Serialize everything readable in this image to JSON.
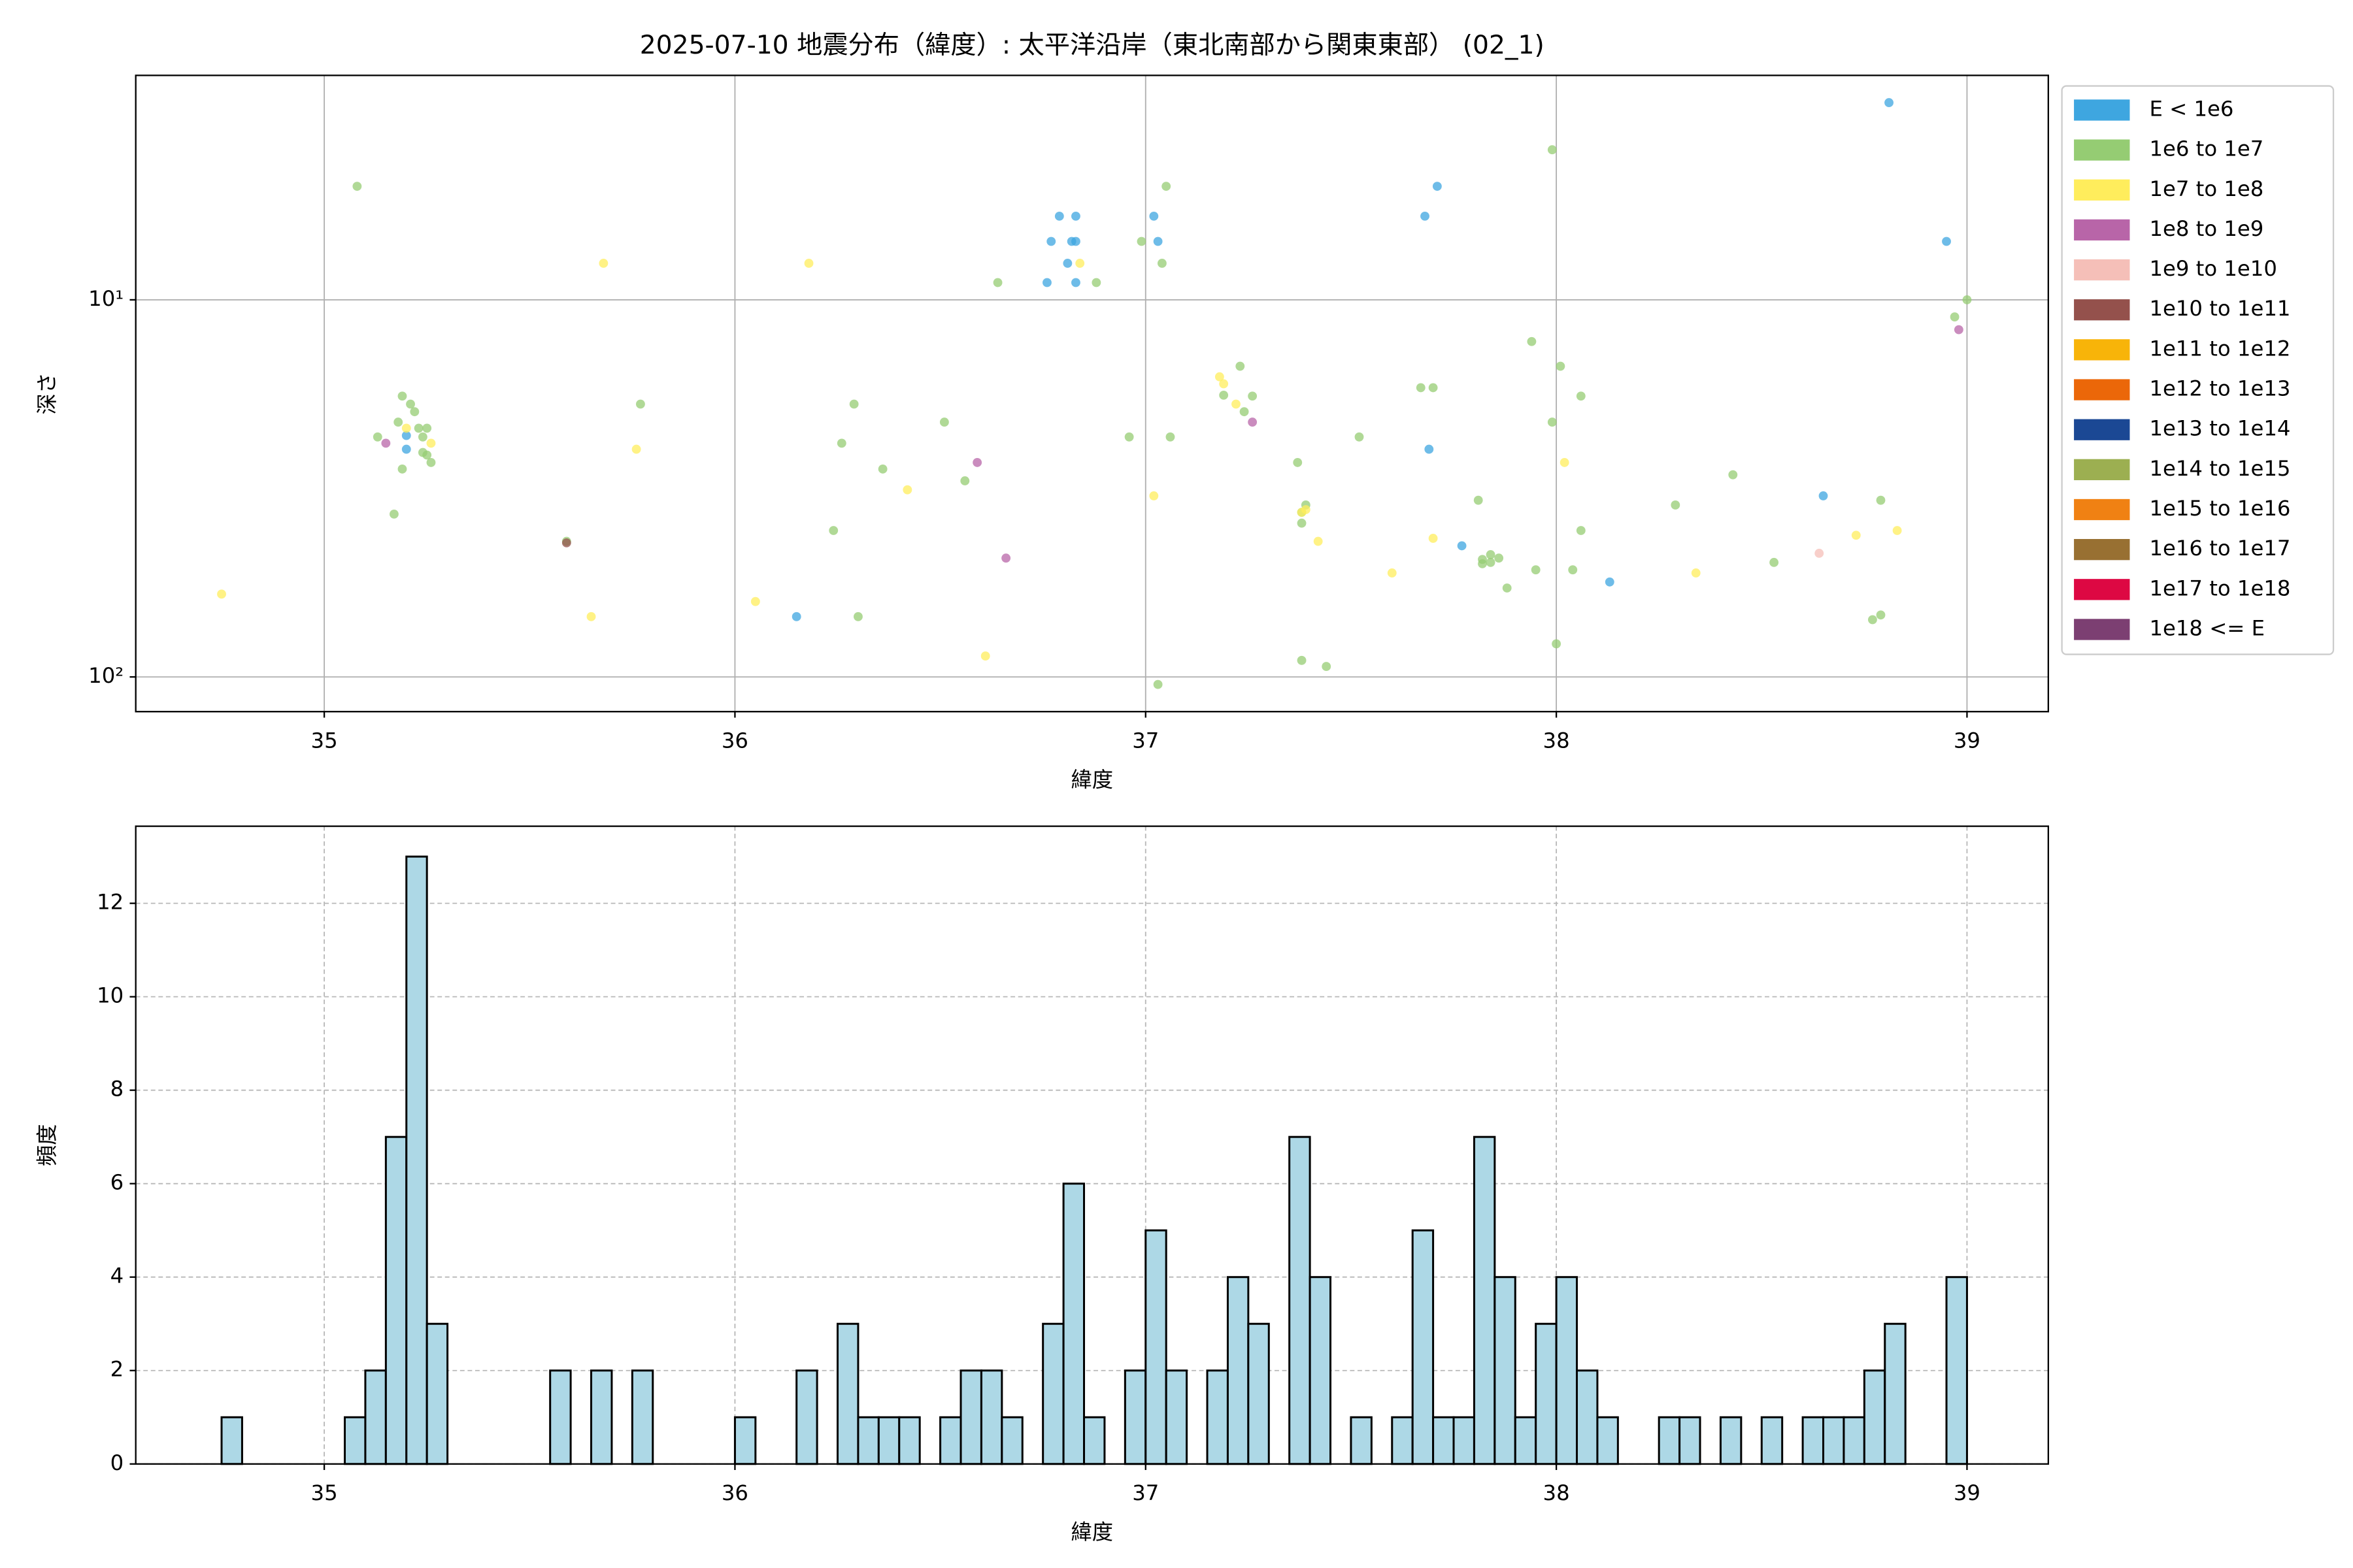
{
  "chart_data": [
    {
      "type": "scatter",
      "title": "2025-07-10 地震分布（緯度）: 太平洋沿岸（東北南部から関東東部） (02_1)",
      "xlabel": "緯度",
      "ylabel": "深さ",
      "xlim": [
        34.541,
        39.198
      ],
      "xticks": [
        35,
        36,
        37,
        38,
        39
      ],
      "ylim": [
        2.54,
        123.6
      ],
      "yscale": "log",
      "invert_y": true,
      "yticks": [
        {
          "value": 10,
          "label": "10¹"
        },
        {
          "value": 100,
          "label": "10²"
        }
      ],
      "grid": true,
      "grid_linestyle": "solid",
      "legend": "outside right",
      "series": [
        {
          "name": "E < 1e6",
          "color": "#3ea6e0",
          "x": [
            38.81,
            38.95,
            36.79,
            36.83,
            36.77,
            36.82,
            36.83,
            36.81,
            36.76,
            36.83,
            37.02,
            37.03,
            37.68,
            37.71,
            35.2,
            35.2,
            37.69,
            37.77,
            36.15,
            38.13,
            38.65
          ],
          "values": [
            3.0,
            7.0,
            6.0,
            6.0,
            7.0,
            7.0,
            7.0,
            8.0,
            9.0,
            9.0,
            6.0,
            7.0,
            6.0,
            5.0,
            22.9,
            24.9,
            24.9,
            44.9,
            69.2,
            56.0,
            33.1
          ]
        },
        {
          "name": "1e6 to 1e7",
          "color": "#95cc73",
          "x": [
            35.08,
            37.99,
            37.05,
            36.99,
            37.04,
            36.64,
            36.88,
            39.0,
            38.97,
            37.94,
            37.23,
            38.01,
            38.06,
            37.19,
            37.26,
            37.24,
            35.19,
            35.21,
            35.22,
            36.29,
            35.77,
            36.51,
            37.99,
            35.18,
            35.23,
            35.25,
            35.13,
            35.24,
            37.67,
            37.7,
            36.96,
            37.06,
            37.52,
            36.26,
            35.24,
            35.25,
            35.26,
            35.19,
            36.36,
            37.37,
            36.56,
            38.43,
            37.81,
            38.79,
            38.29,
            37.39,
            37.38,
            37.38,
            35.17,
            36.24,
            38.06,
            37.84,
            37.82,
            37.86,
            37.84,
            37.82,
            38.53,
            37.95,
            38.04,
            37.88,
            36.3,
            38.79,
            38.77,
            38.0,
            37.38,
            37.44,
            37.03,
            35.59
          ],
          "values": [
            5.0,
            4.0,
            5.0,
            7.0,
            8.0,
            9.0,
            9.0,
            10.0,
            11.1,
            12.9,
            15.0,
            15.0,
            18.0,
            17.9,
            18.0,
            19.8,
            18.0,
            18.9,
            19.8,
            18.9,
            18.9,
            21.1,
            21.1,
            21.1,
            21.9,
            21.9,
            23.1,
            23.1,
            17.1,
            17.1,
            23.1,
            23.1,
            23.1,
            24.0,
            25.4,
            25.8,
            27.0,
            28.1,
            28.1,
            27.0,
            30.2,
            29.1,
            34.0,
            34.0,
            35.0,
            35.0,
            36.6,
            39.1,
            37.0,
            40.9,
            40.9,
            47.4,
            48.8,
            48.4,
            49.7,
            50.1,
            49.7,
            52.0,
            52.0,
            58.1,
            69.2,
            68.5,
            70.5,
            81.7,
            90.4,
            93.8,
            104.7,
            43.7
          ]
        },
        {
          "name": "1e7 to 1e8",
          "color": "#ffed5c",
          "x": [
            35.68,
            36.18,
            36.84,
            37.18,
            37.19,
            37.22,
            35.26,
            35.2,
            35.76,
            38.02,
            36.42,
            37.02,
            37.38,
            37.42,
            37.7,
            38.73,
            38.83,
            37.6,
            38.34,
            34.75,
            36.05,
            35.65,
            36.61,
            37.39
          ],
          "values": [
            8.0,
            8.0,
            8.0,
            16.0,
            16.7,
            18.9,
            24.0,
            21.9,
            24.9,
            27.0,
            31.9,
            33.1,
            36.6,
            43.7,
            42.9,
            42.1,
            40.9,
            53.0,
            53.0,
            60.3,
            63.1,
            69.2,
            88.0,
            36.0
          ]
        },
        {
          "name": "1e8 to 1e9",
          "color": "#b865a8",
          "x": [
            35.15,
            36.59,
            37.26,
            36.66,
            38.98
          ],
          "values": [
            24.0,
            27.0,
            21.1,
            48.4,
            12.0
          ]
        },
        {
          "name": "1e9 to 1e10",
          "color": "#f5bfb8",
          "x": [
            38.64
          ],
          "values": [
            47.0
          ]
        },
        {
          "name": "1e10 to 1e11",
          "color": "#94514c",
          "x": [
            35.59
          ],
          "values": [
            44.1
          ]
        },
        {
          "name": "1e11 to 1e12",
          "color": "#f8b409",
          "x": [],
          "values": []
        },
        {
          "name": "1e12 to 1e13",
          "color": "#eb6709",
          "x": [],
          "values": []
        },
        {
          "name": "1e13 to 1e14",
          "color": "#1b4894",
          "x": [],
          "values": []
        },
        {
          "name": "1e14 to 1e15",
          "color": "#9caf51",
          "x": [],
          "values": []
        },
        {
          "name": "1e15 to 1e16",
          "color": "#f08113",
          "x": [],
          "values": []
        },
        {
          "name": "1e16 to 1e17",
          "color": "#987032",
          "x": [],
          "values": []
        },
        {
          "name": "1e17 to 1e18",
          "color": "#dd0843",
          "x": [],
          "values": []
        },
        {
          "name": "1e18 <= E",
          "color": "#7c3f72",
          "x": [],
          "values": []
        }
      ]
    },
    {
      "type": "histogram",
      "xlabel": "緯度",
      "ylabel": "頻度",
      "xlim": [
        34.541,
        39.198
      ],
      "xticks": [
        35,
        36,
        37,
        38,
        39
      ],
      "ylim": [
        0,
        13.65
      ],
      "yticks": [
        0,
        2,
        4,
        6,
        8,
        10,
        12
      ],
      "grid": true,
      "grid_linestyle": "dashed",
      "color": "#add8e6",
      "edgecolor": "#000000",
      "bins": [
        34.75,
        34.8,
        34.85,
        34.9,
        34.95,
        35.0,
        35.05,
        35.1,
        35.15,
        35.2,
        35.25,
        35.3,
        35.35,
        35.4,
        35.45,
        35.5,
        35.55,
        35.6,
        35.65,
        35.7,
        35.75,
        35.8,
        35.85,
        35.9,
        35.95,
        36.0,
        36.05,
        36.1,
        36.15,
        36.2,
        36.25,
        36.3,
        36.35,
        36.4,
        36.45,
        36.5,
        36.55,
        36.6,
        36.65,
        36.7,
        36.75,
        36.8,
        36.85,
        36.9,
        36.95,
        37.0,
        37.05,
        37.1,
        37.15,
        37.2,
        37.25,
        37.3,
        37.35,
        37.4,
        37.45,
        37.5,
        37.55,
        37.6,
        37.65,
        37.7,
        37.75,
        37.8,
        37.85,
        37.9,
        37.95,
        38.0,
        38.05,
        38.1,
        38.15,
        38.2,
        38.25,
        38.3,
        38.35,
        38.4,
        38.45,
        38.5,
        38.55,
        38.6,
        38.65,
        38.7,
        38.75,
        38.8,
        38.85,
        38.9,
        38.95,
        39.0
      ],
      "counts": [
        1,
        0,
        0,
        0,
        0,
        0,
        1,
        2,
        7,
        13,
        3,
        0,
        0,
        0,
        0,
        0,
        2,
        0,
        2,
        0,
        2,
        0,
        0,
        0,
        0,
        1,
        0,
        0,
        2,
        0,
        3,
        1,
        1,
        1,
        0,
        1,
        2,
        2,
        1,
        0,
        3,
        6,
        1,
        0,
        2,
        5,
        2,
        0,
        2,
        4,
        3,
        0,
        7,
        4,
        0,
        1,
        0,
        1,
        5,
        1,
        1,
        7,
        4,
        1,
        3,
        4,
        2,
        1,
        0,
        0,
        1,
        1,
        0,
        1,
        0,
        1,
        0,
        1,
        1,
        1,
        2,
        3,
        0,
        0,
        4
      ]
    }
  ]
}
